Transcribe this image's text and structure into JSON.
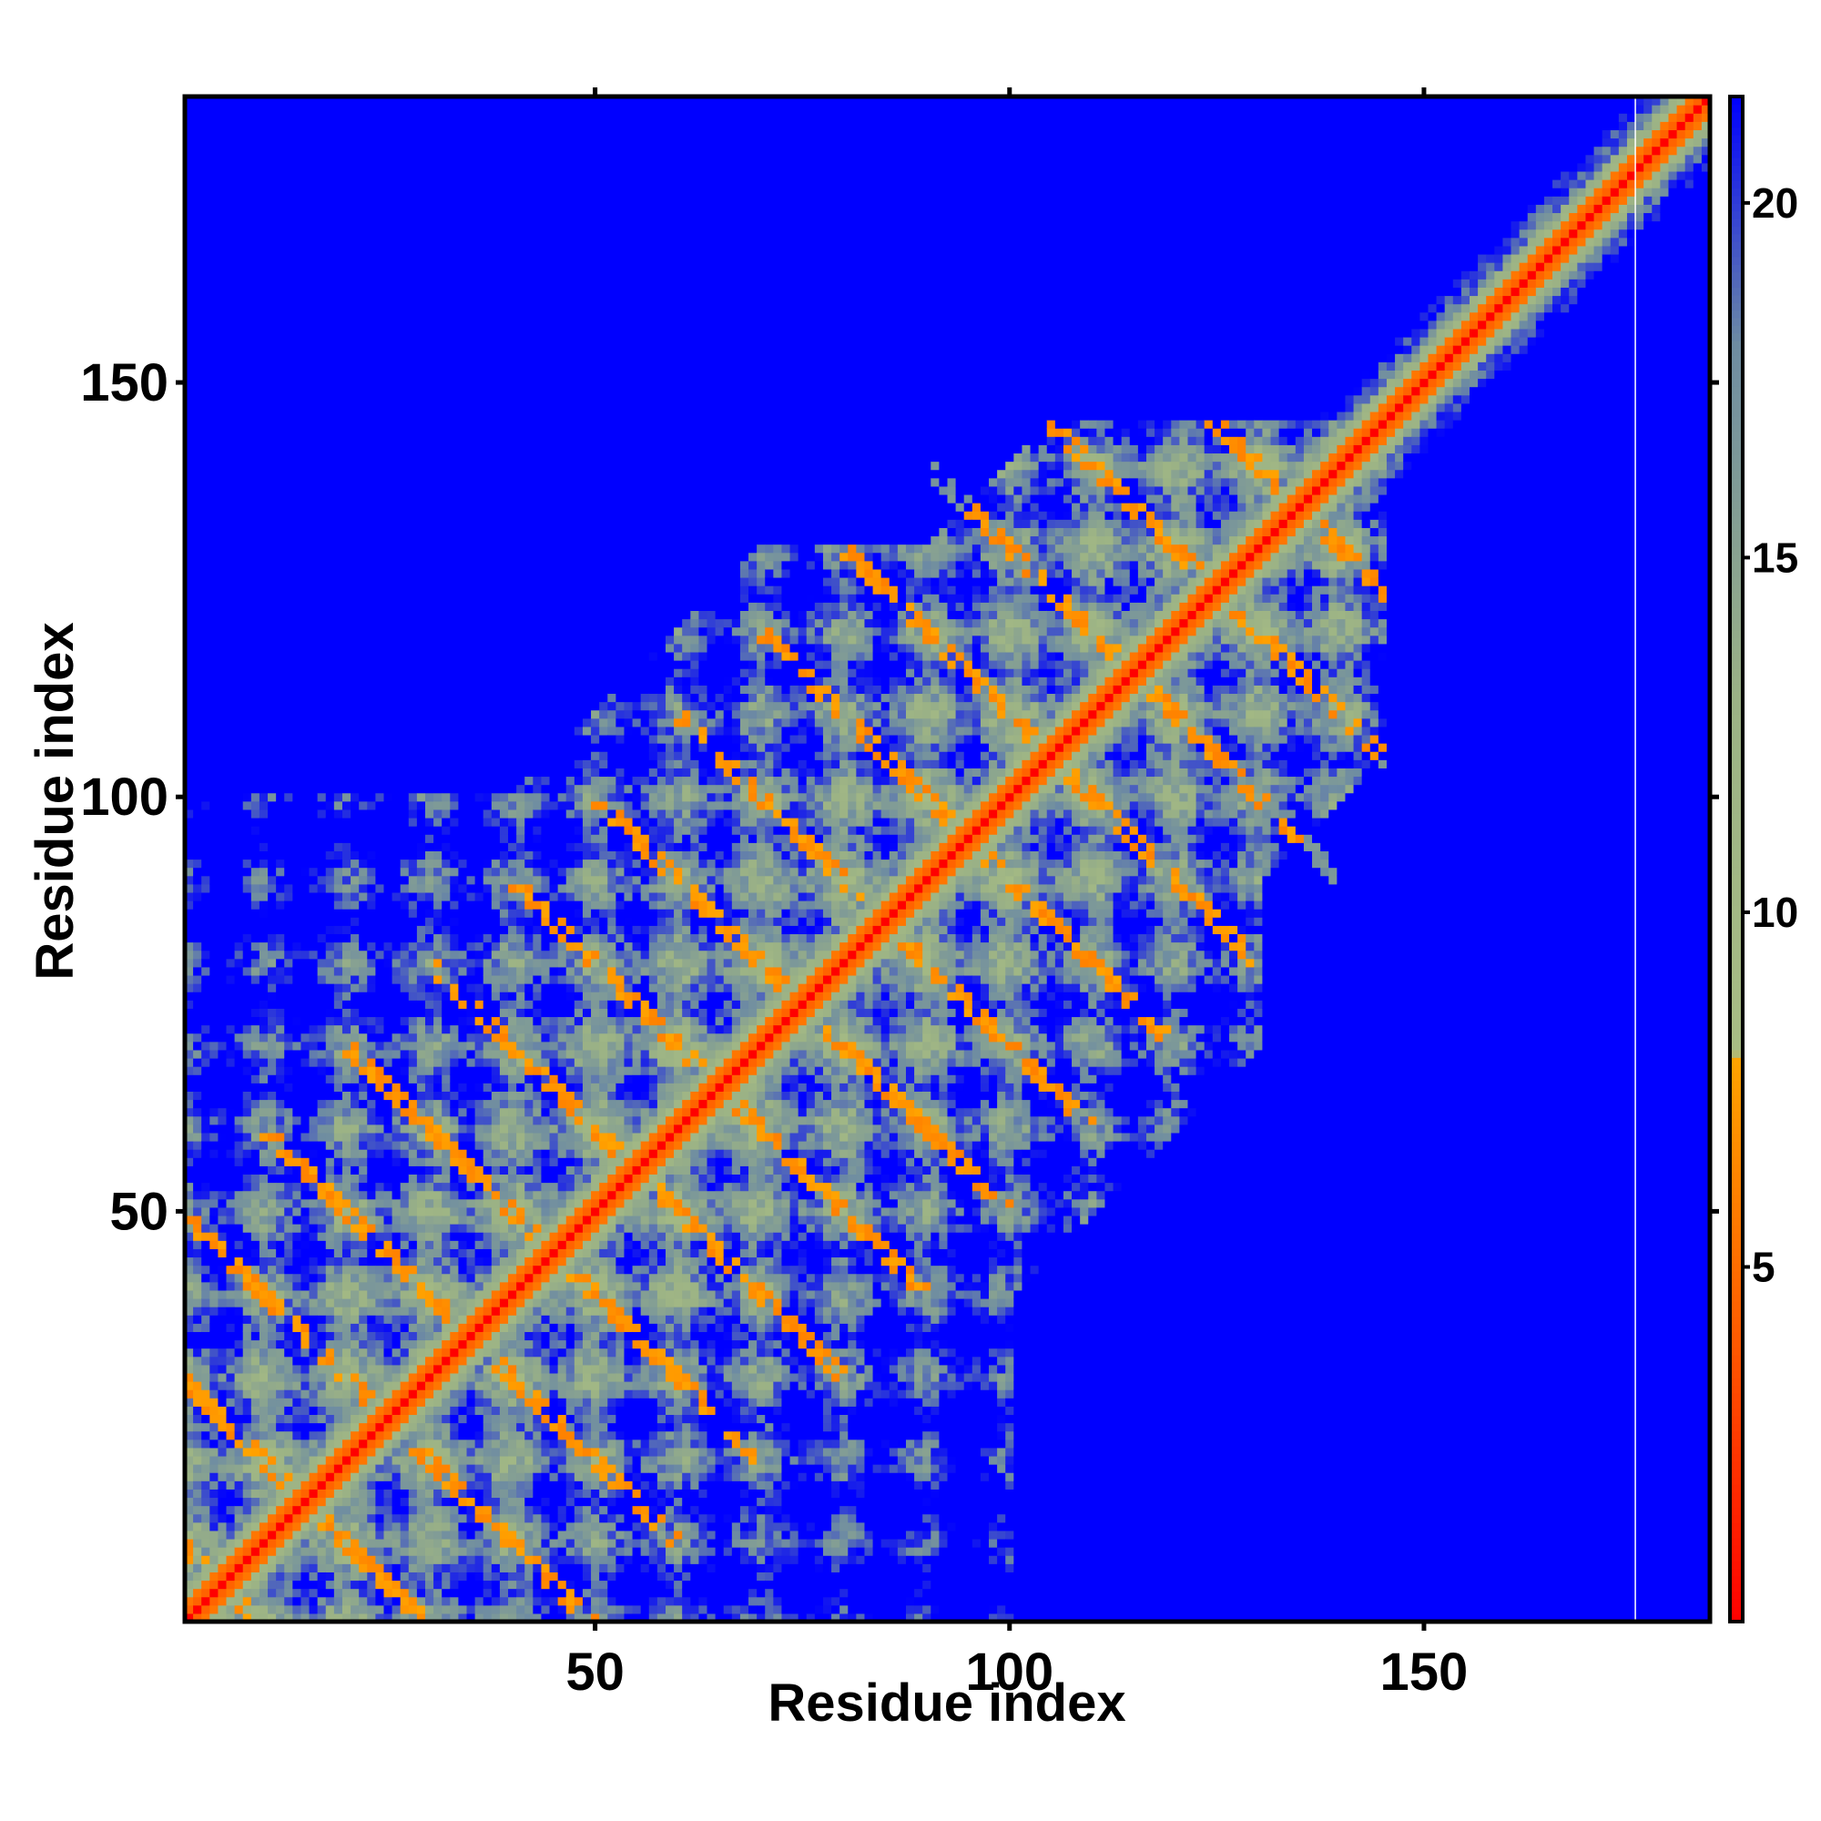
{
  "chart_data": {
    "type": "heatmap",
    "title": "",
    "xlabel": "Residue index",
    "ylabel": "Residue index",
    "n_residues": 184,
    "xlim": [
      1,
      184
    ],
    "ylim": [
      1,
      184
    ],
    "x_ticks": [
      50,
      100,
      150
    ],
    "x_tick_labels": [
      "50",
      "100",
      "150"
    ],
    "y_ticks": [
      50,
      100,
      150
    ],
    "y_tick_labels": [
      "50",
      "100",
      "150"
    ],
    "colorbar": {
      "range": [
        0,
        21.5
      ],
      "ticks": [
        5,
        10,
        15,
        20
      ],
      "tick_labels": [
        "5",
        "10",
        "15",
        "20"
      ],
      "colors": [
        {
          "value": 0,
          "color": "#ff0000"
        },
        {
          "value": 4,
          "color": "#ff5a00"
        },
        {
          "value": 8,
          "color": "#ffa500"
        },
        {
          "value": 8.01,
          "color": "#a8bd84"
        },
        {
          "value": 13,
          "color": "#9bb285"
        },
        {
          "value": 18,
          "color": "#6e8ca2"
        },
        {
          "value": 21.5,
          "color": "#0000ff"
        }
      ]
    },
    "background_value_color": "#0000ff",
    "structure": {
      "diagonal_color": "#ff0000",
      "contact_color": "#ffa500",
      "near_color": "#a8bd84",
      "far_color": "#0000ff",
      "contact_region_upper_limit_x": 145,
      "contact_region_upper_limit_y": 145,
      "tail_region_start": 145,
      "white_line_at_residue": 176
    }
  }
}
